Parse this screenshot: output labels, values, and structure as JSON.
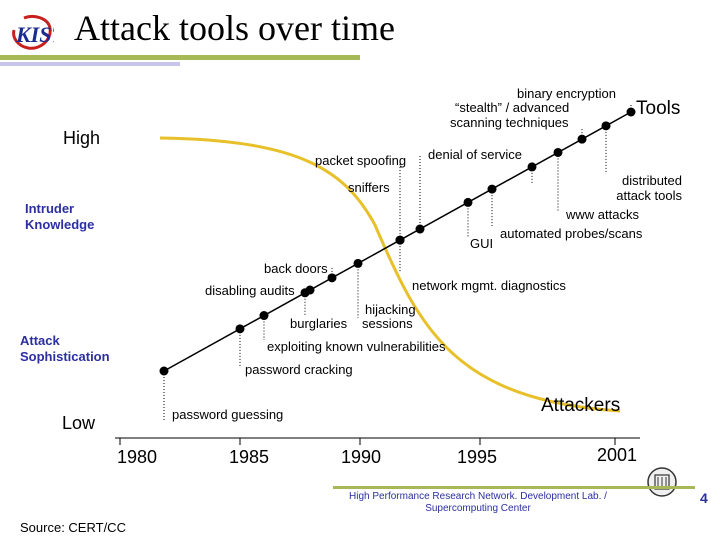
{
  "header": {
    "title": "Attack tools over time"
  },
  "axis": {
    "high": "High",
    "low": "Low",
    "intruder_knowledge": "Intruder Knowledge",
    "attack_sophistication": "Attack Sophistication"
  },
  "years": [
    "1980",
    "1985",
    "1990",
    "1995",
    "2001"
  ],
  "curves": {
    "tools": "Tools",
    "attackers": "Attackers"
  },
  "labels": {
    "binary_encryption": "binary encryption",
    "stealth": "“stealth” / advanced",
    "scanning": "scanning techniques",
    "packet_spoofing": "packet spoofing",
    "denial_of_service": "denial of service",
    "sniffers": "sniffers",
    "distributed": "distributed",
    "attack_tools": "attack tools",
    "www_attacks": "www attacks",
    "automated": "automated probes/scans",
    "gui": "GUI",
    "back_doors": "back doors",
    "disabling_audits": "disabling audits",
    "network_mgmt": "network mgmt. diagnostics",
    "hijacking": "hijacking",
    "sessions": "sessions",
    "burglaries": "burglaries",
    "exploiting": "exploiting known vulnerabilities",
    "password_cracking": "password cracking",
    "password_guessing": "password guessing"
  },
  "footer": {
    "lab": "High Performance Research Network. Development Lab. / Supercomputing Center",
    "page": "4",
    "source": "Source: CERT/CC"
  },
  "colors": {
    "accent": "#a7b957",
    "blue_text": "#2b2fa0",
    "curve": "#e8c02a"
  }
}
